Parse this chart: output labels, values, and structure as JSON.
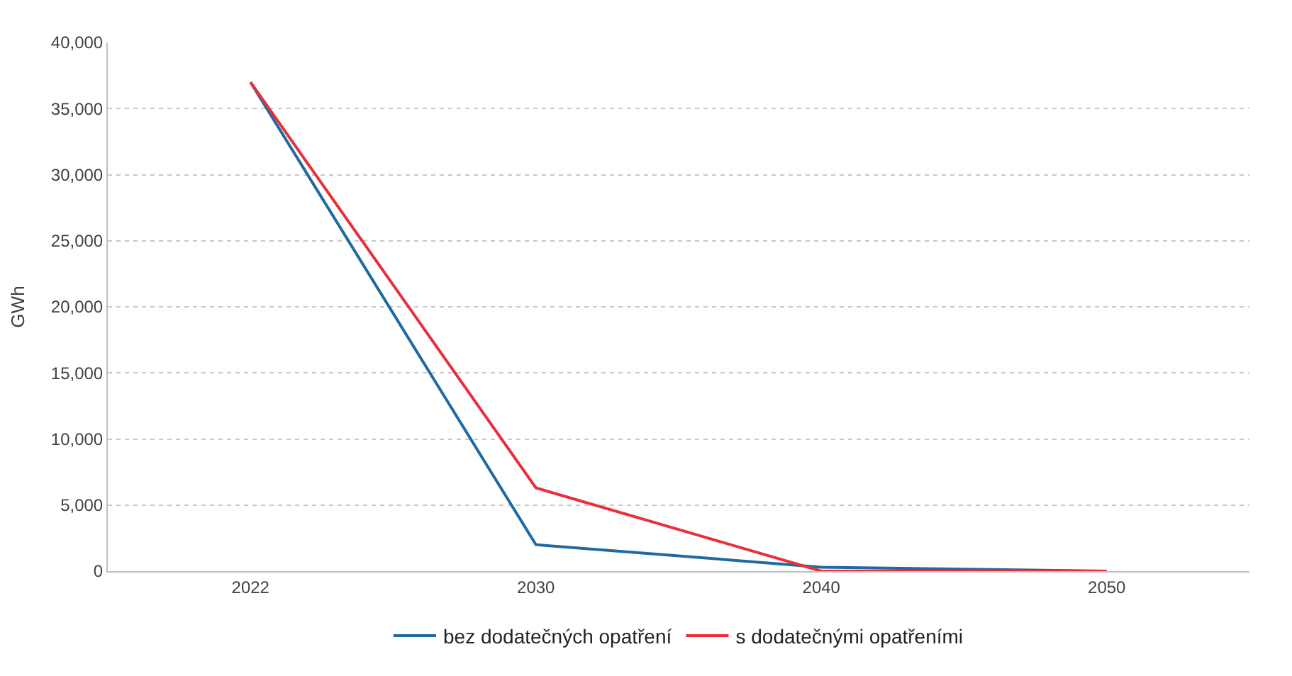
{
  "chart_data": {
    "type": "line",
    "ylabel": "GWh",
    "categories": [
      "2022",
      "2030",
      "2040",
      "2050"
    ],
    "series": [
      {
        "name": "bez dodatečných opatření",
        "color": "#1f6aa0",
        "values": [
          37000,
          2000,
          300,
          0
        ]
      },
      {
        "name": "s dodatečnými opatřeními",
        "color": "#e8303c",
        "values": [
          37000,
          6300,
          0,
          0
        ]
      }
    ],
    "ylim": [
      0,
      40000
    ],
    "yticks": [
      {
        "value": 0,
        "label": "0"
      },
      {
        "value": 5000,
        "label": "5,000"
      },
      {
        "value": 10000,
        "label": "10,000"
      },
      {
        "value": 15000,
        "label": "15,000"
      },
      {
        "value": 20000,
        "label": "20,000"
      },
      {
        "value": 25000,
        "label": "25,000"
      },
      {
        "value": 30000,
        "label": "30,000"
      },
      {
        "value": 35000,
        "label": "35,000"
      },
      {
        "value": 40000,
        "label": "40,000"
      }
    ],
    "grid": "y",
    "legend": "bottom",
    "marker": "none",
    "line_style": "solid"
  }
}
